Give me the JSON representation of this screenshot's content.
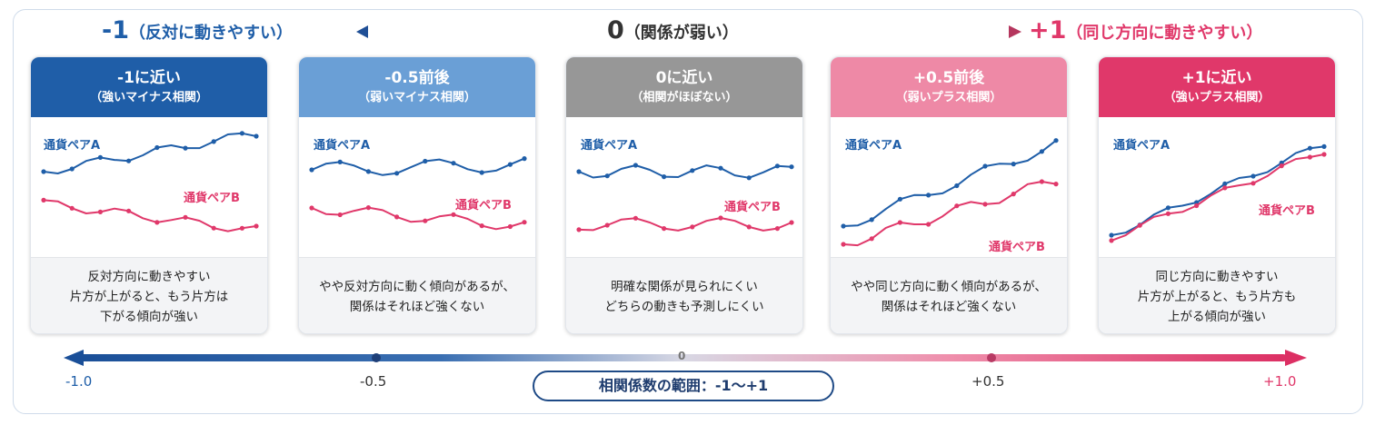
{
  "header": {
    "left_big": "-1",
    "left_small": "（反対に動きやすい）",
    "center_big": "0",
    "center_small": "（関係が弱い）",
    "right_big": "+1",
    "right_small": "（同じ方向に動きやすい）"
  },
  "colors": {
    "blue_dark": "#1f5ea8",
    "blue_light": "#6a9fd6",
    "gray": "#979797",
    "pink_light": "#ee89a6",
    "pink_dark": "#e0386a"
  },
  "cards": [
    {
      "title": "-1に近い",
      "subtitle": "（強いマイナス相関）",
      "series_a_label": "通貨ペアA",
      "series_b_label": "通貨ペアB",
      "desc": [
        "反対方向に動きやすい",
        "片方が上がると、もう片方は",
        "下がる傾向が強い"
      ],
      "header_color": "#1f5ea8"
    },
    {
      "title": "-0.5前後",
      "subtitle": "（弱いマイナス相関）",
      "series_a_label": "通貨ペアA",
      "series_b_label": "通貨ペアB",
      "desc": [
        "やや反対方向に動く傾向があるが、",
        "関係はそれほど強くない"
      ],
      "header_color": "#6a9fd6"
    },
    {
      "title": "0に近い",
      "subtitle": "（相関がほぼない）",
      "series_a_label": "通貨ペアA",
      "series_b_label": "通貨ペアB",
      "desc": [
        "明確な関係が見られにくい",
        "どちらの動きも予測しにくい"
      ],
      "header_color": "#979797"
    },
    {
      "title": "+0.5前後",
      "subtitle": "（弱いプラス相関）",
      "series_a_label": "通貨ペアA",
      "series_b_label": "通貨ペアB",
      "desc": [
        "やや同じ方向に動く傾向があるが、",
        "関係はそれほど強くない"
      ],
      "header_color": "#ee89a6"
    },
    {
      "title": "+1に近い",
      "subtitle": "（強いプラス相関）",
      "series_a_label": "通貨ペアA",
      "series_b_label": "通貨ペアB",
      "desc": [
        "同じ方向に動きやすい",
        "片方が上がると、もう片方も",
        "上がる傾向が強い"
      ],
      "header_color": "#e0386a"
    }
  ],
  "axis": {
    "min_label": "-1.0",
    "minus_half_label": "-0.5",
    "zero_label": "0",
    "plus_half_label": "+0.5",
    "max_label": "+1.0",
    "range_label": "相関係数の範囲：-1〜+1"
  }
}
